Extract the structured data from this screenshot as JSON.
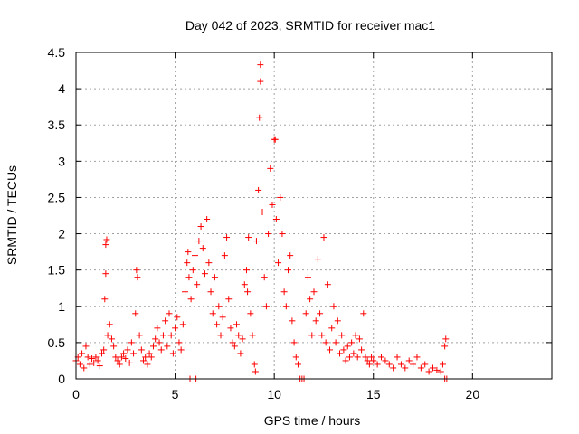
{
  "chart_data": {
    "type": "scatter",
    "title": "Day 042 of 2023, SRMTID for receiver mac1",
    "xlabel": "GPS time / hours",
    "ylabel": "SRMTID / TECUs",
    "xlim": [
      0,
      24
    ],
    "ylim": [
      0,
      4.5
    ],
    "xticks": [
      0,
      5,
      10,
      15,
      20
    ],
    "yticks": [
      0,
      0.5,
      1,
      1.5,
      2,
      2.5,
      3,
      3.5,
      4,
      4.5
    ],
    "grid": true,
    "marker": "plus",
    "color": "#ff0000",
    "series": [
      {
        "points": [
          [
            0.0,
            0.25
          ],
          [
            0.1,
            0.3
          ],
          [
            0.2,
            0.2
          ],
          [
            0.3,
            0.35
          ],
          [
            0.4,
            0.15
          ],
          [
            0.5,
            0.45
          ],
          [
            0.6,
            0.3
          ],
          [
            0.7,
            0.2
          ],
          [
            0.8,
            0.28
          ],
          [
            0.9,
            0.22
          ],
          [
            1.0,
            0.3
          ],
          [
            1.1,
            0.25
          ],
          [
            1.2,
            0.18
          ],
          [
            1.3,
            0.35
          ],
          [
            1.4,
            0.4
          ],
          [
            1.45,
            1.1
          ],
          [
            1.5,
            1.45
          ],
          [
            1.5,
            1.85
          ],
          [
            1.55,
            1.92
          ],
          [
            1.6,
            0.6
          ],
          [
            1.7,
            0.75
          ],
          [
            1.8,
            0.55
          ],
          [
            1.9,
            0.45
          ],
          [
            2.0,
            0.3
          ],
          [
            2.1,
            0.25
          ],
          [
            2.2,
            0.2
          ],
          [
            2.3,
            0.3
          ],
          [
            2.4,
            0.35
          ],
          [
            2.5,
            0.28
          ],
          [
            2.6,
            0.4
          ],
          [
            2.7,
            0.22
          ],
          [
            2.8,
            0.5
          ],
          [
            2.9,
            0.35
          ],
          [
            3.0,
            0.9
          ],
          [
            3.05,
            1.5
          ],
          [
            3.1,
            1.4
          ],
          [
            3.2,
            0.6
          ],
          [
            3.3,
            0.4
          ],
          [
            3.4,
            0.25
          ],
          [
            3.5,
            0.3
          ],
          [
            3.6,
            0.2
          ],
          [
            3.7,
            0.35
          ],
          [
            3.8,
            0.3
          ],
          [
            3.9,
            0.45
          ],
          [
            4.0,
            0.55
          ],
          [
            4.1,
            0.7
          ],
          [
            4.2,
            0.5
          ],
          [
            4.3,
            0.4
          ],
          [
            4.4,
            0.6
          ],
          [
            4.5,
            0.8
          ],
          [
            4.6,
            0.45
          ],
          [
            4.7,
            0.9
          ],
          [
            4.8,
            0.6
          ],
          [
            4.9,
            0.35
          ],
          [
            5.0,
            0.7
          ],
          [
            5.1,
            0.85
          ],
          [
            5.2,
            0.5
          ],
          [
            5.3,
            0.4
          ],
          [
            5.4,
            0.75
          ],
          [
            5.5,
            1.2
          ],
          [
            5.6,
            1.6
          ],
          [
            5.65,
            1.75
          ],
          [
            5.7,
            1.4
          ],
          [
            5.8,
            1.1
          ],
          [
            5.9,
            1.5
          ],
          [
            6.0,
            1.7
          ],
          [
            6.1,
            1.3
          ],
          [
            6.2,
            1.9
          ],
          [
            6.3,
            2.1
          ],
          [
            6.4,
            1.8
          ],
          [
            6.5,
            1.45
          ],
          [
            6.6,
            2.2
          ],
          [
            6.7,
            1.6
          ],
          [
            6.8,
            1.2
          ],
          [
            6.9,
            0.9
          ],
          [
            7.0,
            1.4
          ],
          [
            7.1,
            0.75
          ],
          [
            7.2,
            1.0
          ],
          [
            7.3,
            0.6
          ],
          [
            7.4,
            0.85
          ],
          [
            7.5,
            1.7
          ],
          [
            7.6,
            1.95
          ],
          [
            7.7,
            1.1
          ],
          [
            7.8,
            0.7
          ],
          [
            7.9,
            0.5
          ],
          [
            8.0,
            0.45
          ],
          [
            8.1,
            0.75
          ],
          [
            8.2,
            0.6
          ],
          [
            8.3,
            0.35
          ],
          [
            8.4,
            0.55
          ],
          [
            8.5,
            1.3
          ],
          [
            8.6,
            1.5
          ],
          [
            8.65,
            1.2
          ],
          [
            8.7,
            1.95
          ],
          [
            8.8,
            0.9
          ],
          [
            8.9,
            0.6
          ],
          [
            9.0,
            0.2
          ],
          [
            9.05,
            0.1
          ],
          [
            9.1,
            1.9
          ],
          [
            9.2,
            2.6
          ],
          [
            9.25,
            3.6
          ],
          [
            9.3,
            4.1
          ],
          [
            9.3,
            4.33
          ],
          [
            9.4,
            2.3
          ],
          [
            9.5,
            1.4
          ],
          [
            9.6,
            1.0
          ],
          [
            9.7,
            2.0
          ],
          [
            9.8,
            2.9
          ],
          [
            9.9,
            2.4
          ],
          [
            10.0,
            3.3
          ],
          [
            10.05,
            3.3
          ],
          [
            10.1,
            2.2
          ],
          [
            10.2,
            1.6
          ],
          [
            10.3,
            2.5
          ],
          [
            10.4,
            2.0
          ],
          [
            10.5,
            1.2
          ],
          [
            10.6,
            1.0
          ],
          [
            10.7,
            1.5
          ],
          [
            10.8,
            1.7
          ],
          [
            10.9,
            0.8
          ],
          [
            11.0,
            0.5
          ],
          [
            11.1,
            0.3
          ],
          [
            11.2,
            0.2
          ],
          [
            11.3,
            0.0
          ],
          [
            11.5,
            0.0
          ],
          [
            11.6,
            0.9
          ],
          [
            11.7,
            1.4
          ],
          [
            11.8,
            1.1
          ],
          [
            11.9,
            0.6
          ],
          [
            12.0,
            1.2
          ],
          [
            12.1,
            0.8
          ],
          [
            12.2,
            1.65
          ],
          [
            12.3,
            0.9
          ],
          [
            12.4,
            0.6
          ],
          [
            12.5,
            1.95
          ],
          [
            12.6,
            0.5
          ],
          [
            12.7,
            1.3
          ],
          [
            12.8,
            0.4
          ],
          [
            12.9,
            0.7
          ],
          [
            13.0,
            1.0
          ],
          [
            13.1,
            0.5
          ],
          [
            13.2,
            0.8
          ],
          [
            13.3,
            0.35
          ],
          [
            13.4,
            0.6
          ],
          [
            13.5,
            0.4
          ],
          [
            13.6,
            0.25
          ],
          [
            13.7,
            0.45
          ],
          [
            13.8,
            0.3
          ],
          [
            13.9,
            0.5
          ],
          [
            14.0,
            0.35
          ],
          [
            14.1,
            0.6
          ],
          [
            14.2,
            0.3
          ],
          [
            14.3,
            0.55
          ],
          [
            14.4,
            0.4
          ],
          [
            14.5,
            0.9
          ],
          [
            14.6,
            0.3
          ],
          [
            14.7,
            0.25
          ],
          [
            14.8,
            0.2
          ],
          [
            14.9,
            0.3
          ],
          [
            15.0,
            0.25
          ],
          [
            15.2,
            0.2
          ],
          [
            15.4,
            0.3
          ],
          [
            15.6,
            0.25
          ],
          [
            15.8,
            0.2
          ],
          [
            16.0,
            0.15
          ],
          [
            16.2,
            0.3
          ],
          [
            16.4,
            0.2
          ],
          [
            16.6,
            0.15
          ],
          [
            16.8,
            0.25
          ],
          [
            17.0,
            0.2
          ],
          [
            17.2,
            0.3
          ],
          [
            17.4,
            0.15
          ],
          [
            17.6,
            0.2
          ],
          [
            17.8,
            0.1
          ],
          [
            18.0,
            0.15
          ],
          [
            18.2,
            0.12
          ],
          [
            18.4,
            0.1
          ],
          [
            18.5,
            0.2
          ],
          [
            18.6,
            0.45
          ],
          [
            18.65,
            0.55
          ],
          [
            5.75,
            0.0
          ],
          [
            6.05,
            0.0
          ],
          [
            18.6,
            0.0
          ],
          [
            18.7,
            0.0
          ],
          [
            11.4,
            0.0
          ]
        ]
      }
    ]
  }
}
